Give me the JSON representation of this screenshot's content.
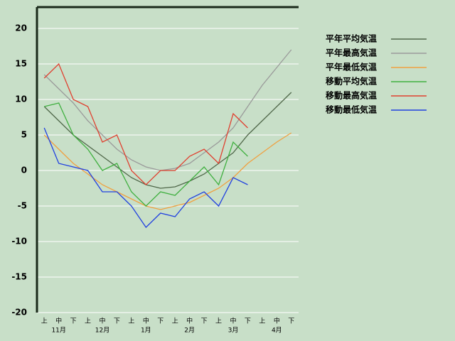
{
  "chart_data": {
    "type": "line",
    "categories": [
      "上",
      "中",
      "下",
      "上",
      "中",
      "下",
      "上",
      "中",
      "下",
      "上",
      "中",
      "下",
      "上",
      "中",
      "下",
      "上",
      "中",
      "下"
    ],
    "months": [
      "11月",
      "12月",
      "1月",
      "2月",
      "3月",
      "4月"
    ],
    "ylim": [
      -20,
      23
    ],
    "yticks": [
      -20,
      -15,
      -10,
      -5,
      0,
      5,
      10,
      15,
      20
    ],
    "grid": true,
    "legend": "right",
    "series": [
      {
        "name": "平年平均気温",
        "color": "#50684a",
        "values": [
          9,
          7,
          5,
          3.5,
          2,
          0.5,
          -1,
          -2,
          -2.5,
          -2.3,
          -1.5,
          -0.5,
          1,
          2.5,
          5,
          7,
          9,
          11
        ]
      },
      {
        "name": "平年最高気温",
        "color": "#9a9a9a",
        "values": [
          13.5,
          11.5,
          9.5,
          7,
          5,
          3,
          1.5,
          0.5,
          0,
          0.3,
          1,
          2.5,
          4,
          6,
          9,
          12,
          14.5,
          17
        ]
      },
      {
        "name": "平年最低気温",
        "color": "#f0a040",
        "values": [
          5,
          3,
          1,
          -0.5,
          -2,
          -3,
          -4,
          -5,
          -5.5,
          -5,
          -4.5,
          -3.5,
          -2.5,
          -1,
          1,
          2.5,
          4,
          5.3
        ]
      },
      {
        "name": "移動平均気温",
        "color": "#40b040",
        "values": [
          9,
          9.5,
          5,
          3,
          0,
          1,
          -3,
          -5,
          -3,
          -3.5,
          -1.5,
          0.5,
          -2,
          4,
          2,
          null,
          null,
          null
        ]
      },
      {
        "name": "移動最高気温",
        "color": "#e04030",
        "values": [
          13,
          15,
          10,
          9,
          4,
          5,
          0,
          -2,
          0,
          0,
          2,
          3,
          1,
          8,
          6,
          null,
          null,
          null
        ]
      },
      {
        "name": "移動最低気温",
        "color": "#2040e0",
        "values": [
          6,
          1,
          0.5,
          0,
          -3,
          -3,
          -5,
          -8,
          -6,
          -6.5,
          -4,
          -3,
          -5,
          -1,
          -2,
          null,
          null,
          null
        ]
      }
    ]
  }
}
